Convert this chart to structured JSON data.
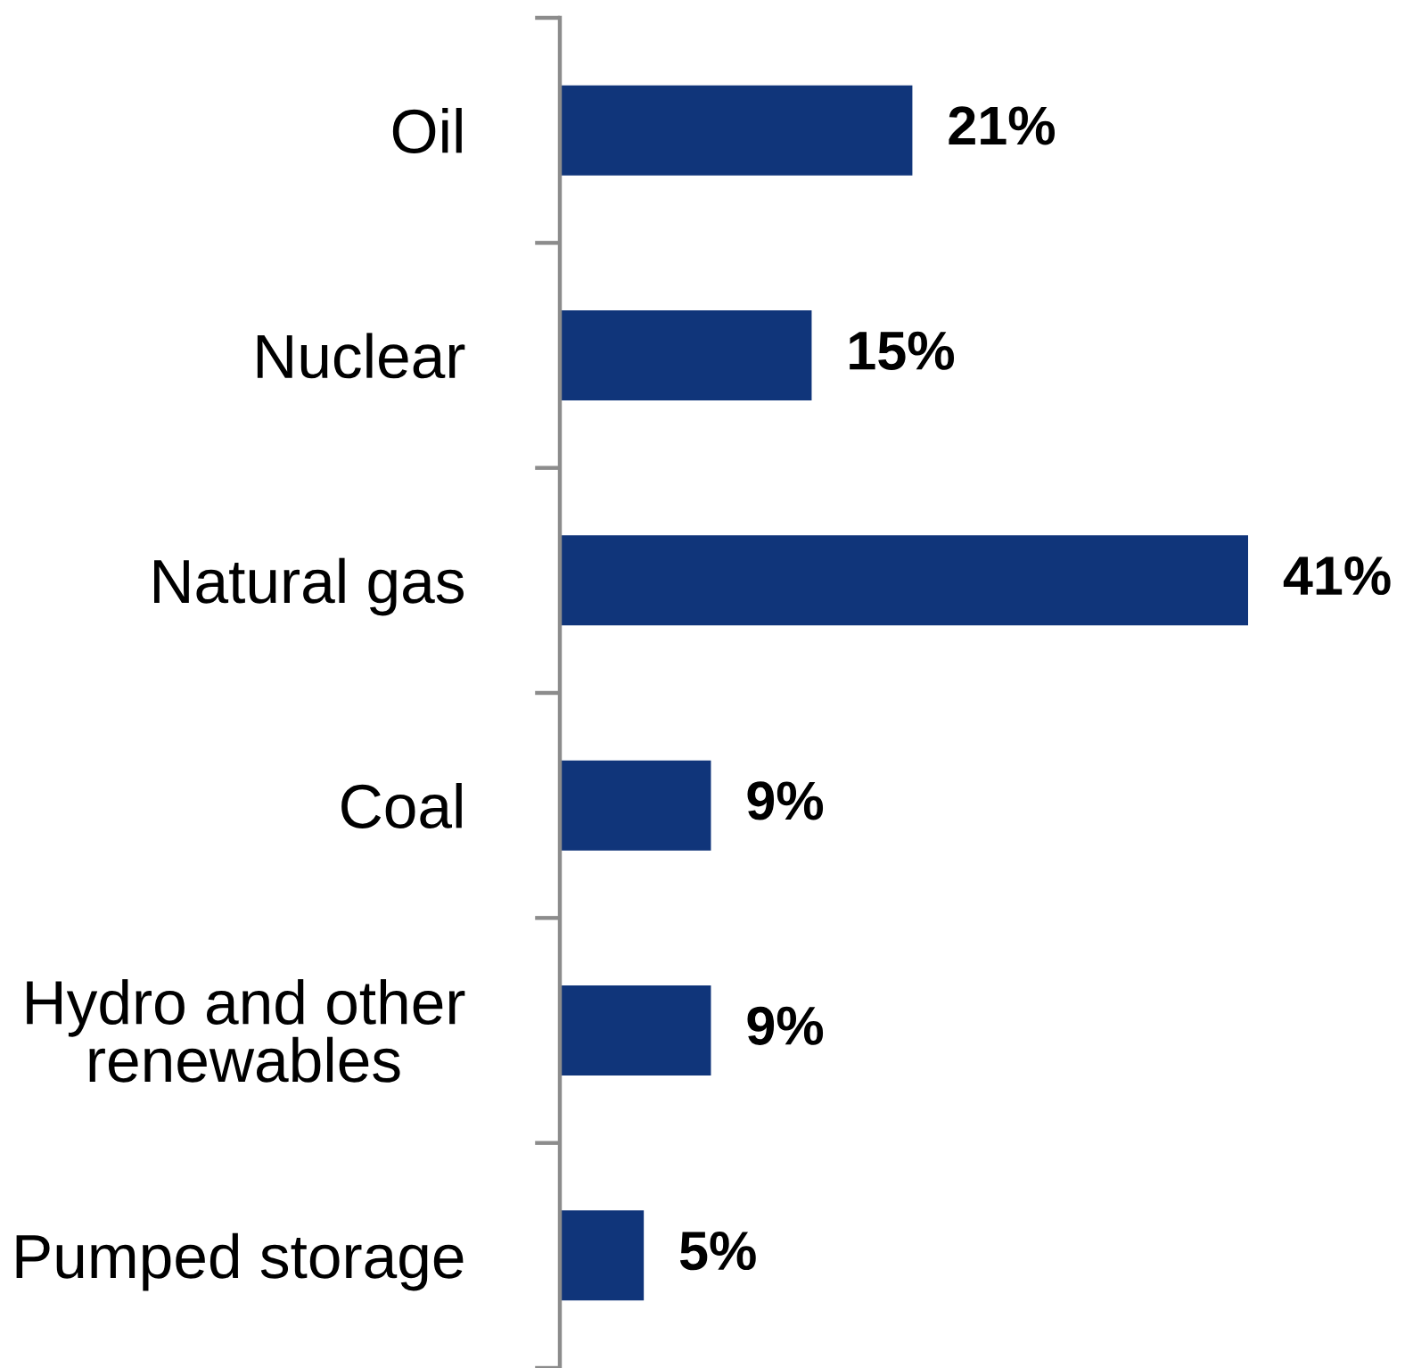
{
  "chart_data": {
    "type": "bar",
    "orientation": "horizontal",
    "categories": [
      "Oil",
      "Nuclear",
      "Natural gas",
      "Coal",
      "Hydro and other\nrenewables",
      "Pumped storage"
    ],
    "values": [
      21,
      15,
      41,
      9,
      9,
      5
    ],
    "value_labels": [
      "21%",
      "15%",
      "41%",
      "9%",
      "9%",
      "5%"
    ],
    "color": "#10357a",
    "tick_labels": "y"
  }
}
